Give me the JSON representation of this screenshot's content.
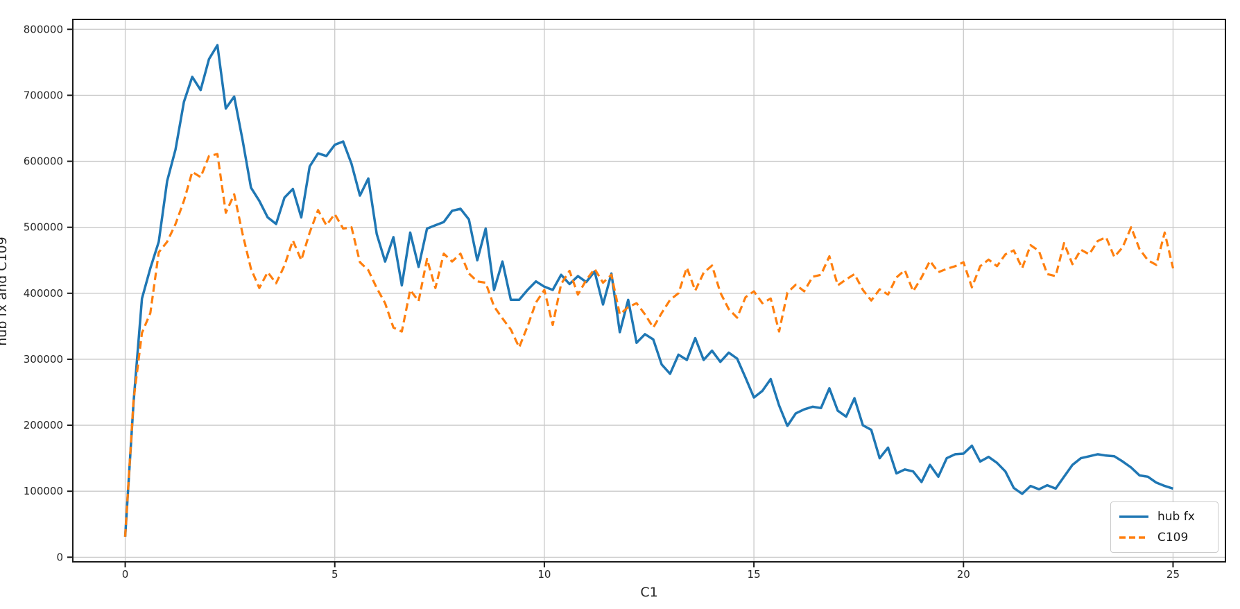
{
  "chart_data": {
    "type": "line",
    "title": "",
    "xlabel": "C1",
    "ylabel": "hub fx and C109",
    "xlim": [
      -1.25,
      26.25
    ],
    "ylim": [
      -7000,
      815000
    ],
    "xticks": [
      0,
      5,
      10,
      15,
      20,
      25
    ],
    "yticks": [
      0,
      100000,
      200000,
      300000,
      400000,
      500000,
      600000,
      700000,
      800000
    ],
    "grid": true,
    "x_start": 0,
    "x_step": 0.2,
    "series": [
      {
        "name": "hub fx",
        "color": "#1f77b4",
        "line_style": "solid",
        "line_width": 3.5,
        "values": [
          31000,
          235000,
          392000,
          438000,
          478000,
          570000,
          618000,
          690000,
          728000,
          708000,
          755000,
          776000,
          680000,
          698000,
          632000,
          560000,
          540000,
          515000,
          505000,
          545000,
          558000,
          515000,
          592000,
          612000,
          608000,
          625000,
          630000,
          596000,
          548000,
          574000,
          490000,
          448000,
          485000,
          412000,
          492000,
          440000,
          498000,
          503000,
          508000,
          525000,
          528000,
          512000,
          450000,
          498000,
          405000,
          448000,
          390000,
          390000,
          405000,
          418000,
          410000,
          405000,
          428000,
          414000,
          426000,
          417000,
          433000,
          383000,
          430000,
          341000,
          390000,
          325000,
          338000,
          330000,
          292000,
          278000,
          307000,
          299000,
          332000,
          299000,
          313000,
          296000,
          310000,
          301000,
          272000,
          242000,
          252000,
          270000,
          230000,
          199000,
          218000,
          224000,
          228000,
          226000,
          256000,
          222000,
          213000,
          241000,
          200000,
          193000,
          150000,
          166000,
          127000,
          133000,
          130000,
          114000,
          140000,
          122000,
          150000,
          156000,
          157000,
          169000,
          145000,
          152000,
          143000,
          130000,
          105000,
          96000,
          108000,
          103000,
          109000,
          104000,
          122000,
          140000,
          150000,
          153000,
          156000,
          154000,
          153000,
          145000,
          136000,
          124000,
          122000,
          113000,
          108000,
          104000
        ]
      },
      {
        "name": "C109",
        "color": "#ff7f0e",
        "line_style": "dashed",
        "line_width": 3.2,
        "values": [
          31000,
          238000,
          340000,
          370000,
          462000,
          478000,
          505000,
          540000,
          584000,
          576000,
          608000,
          611000,
          522000,
          550000,
          490000,
          437000,
          408000,
          432000,
          415000,
          442000,
          480000,
          450000,
          492000,
          526000,
          503000,
          520000,
          498000,
          500000,
          447000,
          435000,
          408000,
          385000,
          348000,
          342000,
          405000,
          388000,
          452000,
          408000,
          460000,
          448000,
          460000,
          430000,
          418000,
          416000,
          380000,
          362000,
          345000,
          318000,
          350000,
          386000,
          405000,
          352000,
          414000,
          434000,
          398000,
          420000,
          437000,
          416000,
          428000,
          368000,
          379000,
          385000,
          368000,
          348000,
          370000,
          390000,
          400000,
          439000,
          404000,
          431000,
          442000,
          401000,
          376000,
          363000,
          394000,
          403000,
          385000,
          392000,
          342000,
          401000,
          413000,
          403000,
          425000,
          428000,
          456000,
          412000,
          421000,
          429000,
          405000,
          389000,
          406000,
          398000,
          424000,
          435000,
          403000,
          424000,
          449000,
          432000,
          437000,
          441000,
          447000,
          409000,
          441000,
          451000,
          441000,
          459000,
          465000,
          438000,
          473000,
          464000,
          429000,
          426000,
          476000,
          444000,
          466000,
          459000,
          479000,
          485000,
          455000,
          470000,
          500000,
          467000,
          450000,
          443000,
          492000,
          438000
        ]
      }
    ],
    "legend": {
      "location": "lower right",
      "entries": [
        "hub fx",
        "C109"
      ]
    },
    "colors": {
      "background": "#ffffff",
      "grid": "#c9c9c9",
      "spine": "#1a1a1a",
      "tick_text": "#262626"
    }
  }
}
